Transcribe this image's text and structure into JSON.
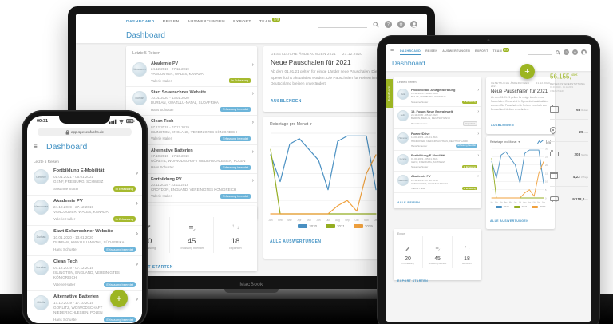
{
  "colors": {
    "primary_blue": "#4493c4",
    "brand_green": "#9cb522",
    "badge_green": "#a6ba2f",
    "badge_blue": "#6db5da",
    "chart_blue": "#4a90c2",
    "chart_green": "#94ad21",
    "chart_orange": "#f0a13e"
  },
  "stage": {
    "macbook_label": "MacBook"
  },
  "app": {
    "nav_items": [
      {
        "label": "DASHBOARD",
        "class": "active"
      },
      {
        "label": "REISEN"
      },
      {
        "label": "AUSWERTUNGEN"
      },
      {
        "label": "EXPORT"
      },
      {
        "label": "TEAM",
        "badge": "3/3"
      }
    ],
    "page_title": "Dashboard",
    "trips_heading": "Letzte 5 Reisen",
    "trips_link": "ALLE REISEN",
    "chart_link": "ALLE AUSWERTUNGEN",
    "news": {
      "eyebrow": "GESETZLICHE ÄNDERUNGEN 2021",
      "date": "21.12.2020",
      "title": "Neue Pauschalen für 2021",
      "body": "Ab dem 01.01.21 gelten für einige Länder neue Pauschalen. Diese sind in Spesenfuchs aktualisiert worden. Die Pauschalen für Reisen innerhalb von Deutschland bleiben unverändert.",
      "dismiss_label": "AUSBLENDEN"
    },
    "export": {
      "title": "Export",
      "action": "EXPORT STARTEN",
      "stats": [
        {
          "icon": "pencil-icon",
          "value": "20",
          "label": "In Erfassung"
        },
        {
          "icon": "list-check-icon",
          "value": "45",
          "label": "Erfassung beendet"
        },
        {
          "icon": "sort-icon",
          "value": "18",
          "label": "Exportiert"
        }
      ]
    },
    "summary": {
      "total_main": "56.155,",
      "total_sup": "45 €",
      "caption": "REISEKOSTENERSTATTUNG",
      "period": "01.01.2020 - 31.12.2021",
      "users": "3 BENUTZER",
      "stats": [
        {
          "icon": "briefcase-icon",
          "value": "63",
          "unit": "Reisen"
        },
        {
          "icon": "location-pin-icon",
          "value": "29",
          "unit": "Orte"
        },
        {
          "icon": "bed-icon",
          "value": "203",
          "unit": "Nächte"
        },
        {
          "icon": "calendar-icon",
          "value": "4,22",
          "unit": "∅ Tage"
        },
        {
          "icon": "car-icon",
          "value": "9.118,0",
          "unit": "km"
        }
      ]
    }
  },
  "laptop_trips": [
    {
      "title": "Akademie PV",
      "dates": "24.12.2019 - 27.12.2019",
      "location": "VANCOUVER, WALES, KANADA",
      "person": "Valerie Haller",
      "status": "In Erfassung",
      "status_class": "status-green",
      "avatar": "Vancouver"
    },
    {
      "title": "Start Solarrechner Website",
      "dates": "10.01.2020 - 13.01.2020",
      "location": "DURBAN, KWAZULU-NATAL, SÜDAFRIKA",
      "person": "Hans Schuster",
      "status": "Erfassung beendet",
      "status_class": "status-blue",
      "avatar": "Durban"
    },
    {
      "title": "Clean Tech",
      "dates": "07.12.2019 - 07.12.2019",
      "location": "ISLINGTON, ENGLAND, VEREINIGTES KÖNIGREICH",
      "person": "Valerie Haller",
      "status": "Erfassung beendet",
      "status_class": "status-blue",
      "avatar": "London"
    },
    {
      "title": "Alternative Batterien",
      "dates": "17.10.2019 - 17.10.2019",
      "location": "GÖRLITZ, WOIWODSCHAFT NIEDERSCHLESIEN, POLEN",
      "person": "Hans Schuster",
      "status": "Erfassung beendet",
      "status_class": "status-blue",
      "avatar": "Görlitz"
    },
    {
      "title": "Fortbildung PV",
      "dates": "20.11.2019 - 23.11.2019",
      "location": "CROYDON, ENGLAND, VEREINIGTES KÖNIGREICH",
      "person": "Valerie Haller",
      "status": "Erfassung beendet",
      "status_class": "status-blue",
      "avatar": "Croydon"
    }
  ],
  "tablet_trips": [
    {
      "title": "Photovoltaik Anlage Beratung",
      "dates": "15.12.2020 - 18.12.2020",
      "location": "BULLE, FREIBURG, SCHWEIZ",
      "person": "Susanne Sutter",
      "status": "In Erfassung",
      "status_class": "status-green",
      "avatar": "Bulle"
    },
    {
      "title": "19. Forum Neue Energiewelt",
      "dates": "28.11.2020 - 05.12.2020",
      "location": "BERLIN, BERLIN, DEUTSCHLAND",
      "person": "Hans Schuster",
      "status": "Exportiert",
      "status_class": "status-gray",
      "avatar": "Berlin"
    },
    {
      "title": "Power2Drive",
      "dates": "18.01.2021 - 21.01.2021",
      "location": "HANNOVER, NIEDERSACHSEN, DEUTSCHLAND",
      "person": "Hans Schuster",
      "status": "Erfassung beendet",
      "status_class": "status-blue",
      "avatar": "Hannover"
    },
    {
      "title": "Fortbildung E-Mobilität",
      "dates": "01.01.2021 - 05.01.2021",
      "location": "GENF, FREIBURG, SCHWEIZ",
      "person": "Susanne Sutter",
      "status": "In Erfassung",
      "status_class": "status-green",
      "avatar": "Genève"
    },
    {
      "title": "Akademie PV",
      "dates": "24.12.2019 - 27.12.2019",
      "location": "VANCOUVER, WALES, KANADA",
      "person": "Valerie Haller",
      "status": "In Erfassung",
      "status_class": "status-green",
      "avatar": "Vancouver"
    }
  ],
  "phone_trips": [
    {
      "title": "Fortbildung E-Mobilität",
      "dates": "01.01.2021 - 05.01.2021",
      "location": "GENF, FREIBURG, SCHWEIZ",
      "person": "Susanne Sutter",
      "status": "In Erfassung",
      "status_class": "status-green",
      "avatar": "Genève"
    },
    {
      "title": "Akademie PV",
      "dates": "24.12.2019 - 27.12.2019",
      "location": "VANCOUVER, WALES, KANADA",
      "person": "Valerie Haller",
      "status": "In Erfassung",
      "status_class": "status-green",
      "avatar": "Vancouver"
    },
    {
      "title": "Start Solarrechner Website",
      "dates": "10.01.2020 - 13.01.2020",
      "location": "DURBAN, KWAZULU-NATAL, SÜDAFRIKA",
      "person": "Hans Schuster",
      "status": "Erfassung beendet",
      "status_class": "status-blue",
      "avatar": "Durban"
    },
    {
      "title": "Clean Tech",
      "dates": "07.12.2019 - 07.12.2019",
      "location": "ISLINGTON, ENGLAND, VEREINIGTES KÖNIGREICH",
      "person": "Valerie Haller",
      "status": "Erfassung beendet",
      "status_class": "status-blue",
      "avatar": "London"
    },
    {
      "title": "Alternative Batterien",
      "dates": "17.10.2019 - 17.10.2019",
      "location": "GÖRLITZ, WOIWODSCHAFT NIEDERSCHLESIEN, POLEN",
      "person": "Hans Schuster",
      "status": "Erfassung beendet",
      "status_class": "status-blue",
      "avatar": "Görlitz"
    }
  ],
  "phone": {
    "time": "09:31",
    "url": "app.spesenfuchs.de"
  },
  "tablet": {
    "feedback_tab": "Feedback"
  },
  "chart_data": {
    "type": "line",
    "title": "Reisetage pro Monat",
    "categories": [
      "Jan",
      "Feb",
      "Mär",
      "Apr",
      "Mai",
      "Jun",
      "Jul",
      "Aug",
      "Sep",
      "Okt",
      "Nov",
      "Dez"
    ],
    "series": [
      {
        "name": "2020",
        "color": "#4a90c2",
        "values": [
          22,
          12,
          26,
          28,
          24,
          20,
          9,
          27,
          29,
          29,
          29,
          9
        ]
      },
      {
        "name": "2021",
        "color": "#94ad21",
        "values": [
          24,
          0,
          0,
          0,
          0,
          0,
          0,
          0,
          0,
          0,
          0,
          0
        ]
      },
      {
        "name": "2019",
        "color": "#f0a13e",
        "values": [
          0,
          0,
          0,
          0,
          0,
          0,
          0,
          3,
          5,
          1,
          15,
          22
        ]
      }
    ],
    "ylim": [
      0,
      30
    ],
    "yticks": [
      0,
      5,
      10,
      15,
      20,
      25,
      30
    ],
    "ylabel": "",
    "xlabel": "",
    "grid": true,
    "legend_position": "bottom"
  }
}
